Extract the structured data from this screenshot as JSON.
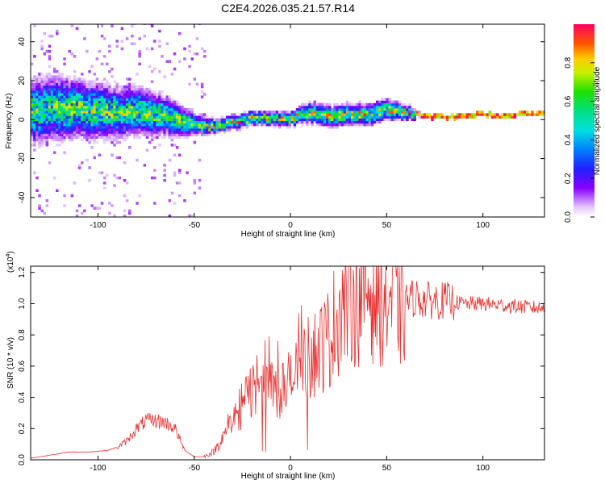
{
  "chart_data": [
    {
      "type": "heatmap",
      "title": "C2E4.2026.035.21.57.R14",
      "xlabel": "Height of straight line (km)",
      "ylabel": "Frequency (Hz)",
      "xlim": [
        -135,
        132
      ],
      "ylim": [
        -50,
        49
      ],
      "xticks": [
        -100,
        -50,
        0,
        50,
        100
      ],
      "yticks": [
        -40,
        -20,
        0,
        20,
        40
      ],
      "colorbar": {
        "label": "Normalized spectral amplitude",
        "range": [
          0,
          1
        ],
        "ticks": [
          0.0,
          0.2,
          0.4,
          0.6,
          0.8
        ]
      },
      "ridge": {
        "heights": [
          -135,
          -120,
          -110,
          -100,
          -90,
          -80,
          -70,
          -60,
          -50,
          -40,
          -30,
          -20,
          -10,
          0,
          10,
          20,
          30,
          40,
          50,
          60,
          70,
          80,
          90,
          100,
          110,
          120,
          132
        ],
        "center_frequency": [
          4,
          5,
          5,
          4,
          3,
          4,
          2,
          0,
          -3,
          -4,
          -2,
          0,
          0,
          0,
          3,
          1,
          2,
          2,
          5,
          3,
          1,
          1,
          1,
          2,
          1,
          2,
          3
        ],
        "spread": [
          9,
          9,
          8,
          8,
          7,
          7,
          6,
          5,
          3,
          2,
          2,
          2,
          2,
          2,
          3,
          3,
          3,
          3,
          3,
          2,
          1,
          1,
          1,
          1,
          1,
          1,
          1
        ]
      }
    },
    {
      "type": "line",
      "xlabel": "Height of straight line (km)",
      "ylabel": "SNR (10 * v/v)",
      "yscale_label": "(x10",
      "yscale_exp": "4",
      "yscale_close": ")",
      "xlim": [
        -135,
        132
      ],
      "ylim": [
        0,
        1.24
      ],
      "xticks": [
        -100,
        -50,
        0,
        50,
        100
      ],
      "yticks": [
        0.0,
        0.2,
        0.4,
        0.6,
        0.8,
        1.0,
        1.2
      ],
      "series": [
        {
          "name": "SNR",
          "color": "#e8302f",
          "x": [
            -135,
            -125,
            -115,
            -105,
            -95,
            -90,
            -85,
            -80,
            -75,
            -70,
            -65,
            -60,
            -55,
            -50,
            -45,
            -40,
            -35,
            -30,
            -25,
            -20,
            -15,
            -10,
            -5,
            0,
            5,
            10,
            15,
            20,
            25,
            30,
            35,
            40,
            45,
            50,
            55,
            60,
            65,
            70,
            80,
            90,
            100,
            110,
            120,
            132
          ],
          "values": [
            0.01,
            0.03,
            0.05,
            0.05,
            0.06,
            0.08,
            0.12,
            0.2,
            0.25,
            0.25,
            0.24,
            0.2,
            0.06,
            0.02,
            0.02,
            0.05,
            0.15,
            0.25,
            0.35,
            0.45,
            0.55,
            0.5,
            0.45,
            0.5,
            0.58,
            0.65,
            0.72,
            0.78,
            0.95,
            1.05,
            1.05,
            1.1,
            1.08,
            1.02,
            1.05,
            1.02,
            1.04,
            1.02,
            1.02,
            1.0,
            1.0,
            0.99,
            0.98,
            0.97
          ]
        }
      ]
    }
  ]
}
